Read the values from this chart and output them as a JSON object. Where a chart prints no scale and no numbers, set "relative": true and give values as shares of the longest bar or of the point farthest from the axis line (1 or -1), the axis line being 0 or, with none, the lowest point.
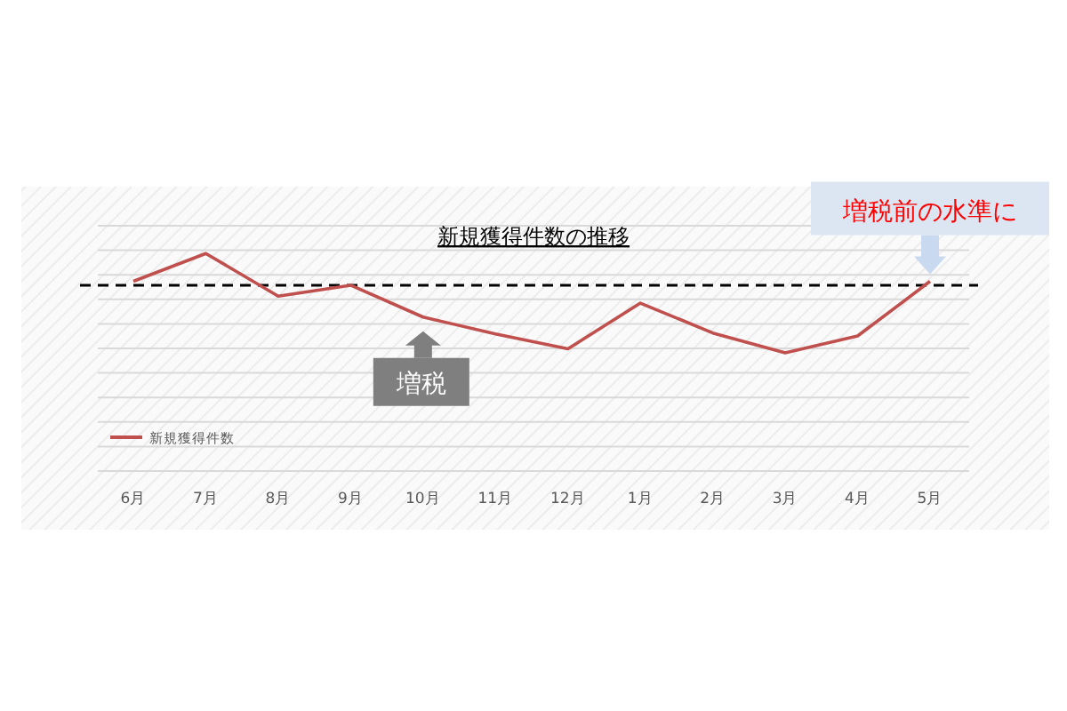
{
  "chart_data": {
    "type": "line",
    "title": "新規獲得件数の推移",
    "relative": true,
    "categories": [
      "6月",
      "7月",
      "8月",
      "9月",
      "10月",
      "11月",
      "12月",
      "1月",
      "2月",
      "3月",
      "4月",
      "5月"
    ],
    "series": [
      {
        "name": "新規獲得件数",
        "color": "#c0504d",
        "values": [
          0.72,
          1,
          0.57,
          0.68,
          0.36,
          0.19,
          0.04,
          0.5,
          0.2,
          0,
          0.17,
          0.72
        ]
      }
    ],
    "ref_lines": [
      {
        "axis": "y",
        "value": 0.68,
        "color": "#000000",
        "line_style": "dashed"
      }
    ],
    "annotations": [
      {
        "text": "増税",
        "x": "10月",
        "y": 0.36
      },
      {
        "text": "増税前の水準に",
        "x": "5月",
        "y": 0.72
      }
    ],
    "grid": "y",
    "legend": "bottom left",
    "marker": "none",
    "line_style": "solid"
  }
}
